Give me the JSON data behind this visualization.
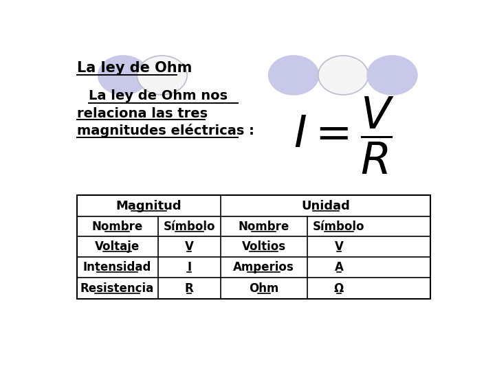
{
  "title": "La ley de Ohm",
  "subtitle_line1": "La ley de Ohm nos",
  "subtitle_line2": "relaciona las tres",
  "subtitle_line3": "magnitudes eléctricas :",
  "bg_color": "#ffffff",
  "table_header_row1": [
    "Magnitud",
    "Unidad"
  ],
  "table_header_row2": [
    "Nombre",
    "Símbolo",
    "Nombre",
    "Símbolo"
  ],
  "table_data": [
    [
      "Voltaje",
      "V",
      "Voltios",
      "V"
    ],
    [
      "Intensidad",
      "I",
      "Amperios",
      "A"
    ],
    [
      "Resistencia",
      "R",
      "Ohm",
      "Ω"
    ]
  ],
  "highlight_color": "#d0d0f0",
  "circle_color_filled": "#c8c8e8",
  "circle_color_empty": "#f5f5f5",
  "circle_edge": "#bbbbcc",
  "font_family": "Comic Sans MS",
  "title_fontsize": 15,
  "body_fontsize": 14,
  "table_fontsize": 12
}
